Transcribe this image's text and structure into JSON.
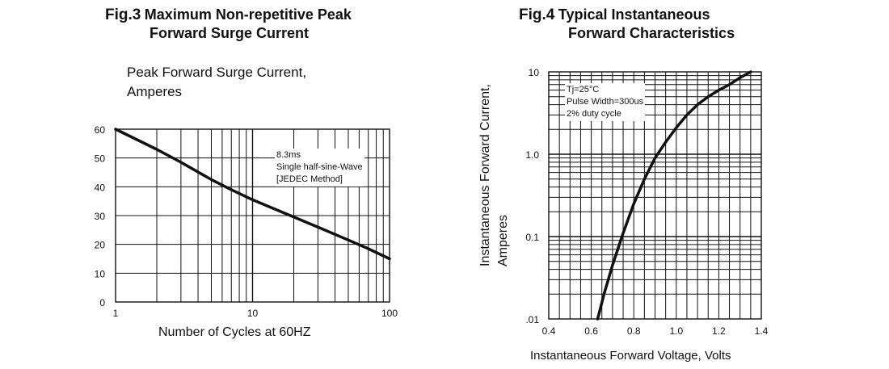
{
  "fig3": {
    "fig_label": "Fig.3",
    "title_line1": "Maximum Non-repetitive Peak",
    "title_line2": "Forward Surge Current",
    "ylabel_line1": "Peak Forward Surge Current,",
    "ylabel_line2": "Amperes",
    "xlabel": "Number of Cycles at 60HZ",
    "note_line1": "8.3ms",
    "note_line2": "Single half-sine-Wave",
    "note_line3": "[JEDEC Method]"
  },
  "fig4": {
    "fig_label": "Fig.4",
    "title_line1": "Typical Instantaneous",
    "title_line2": "Forward Characteristics",
    "ylabel_line1": "Instantaneous Forward Current,",
    "ylabel_line2": "Amperes",
    "xlabel": "Instantaneous Forward  Voltage, Volts",
    "note_line1": "Tj=25°C",
    "note_line2": "Pulse Width=300us",
    "note_line3": "2% duty cycle"
  },
  "chart_data": [
    {
      "type": "line",
      "title": "Fig.3 Maximum Non-repetitive Peak Forward Surge Current",
      "xlabel": "Number of Cycles at 60HZ",
      "ylabel": "Peak Forward Surge Current, Amperes",
      "xscale": "log",
      "xlim": [
        1,
        100
      ],
      "ylim": [
        0,
        60
      ],
      "xticks": [
        "1",
        "10",
        "100"
      ],
      "yticks": [
        "0",
        "10",
        "20",
        "30",
        "40",
        "50",
        "60"
      ],
      "grid": true,
      "series": [
        {
          "x": [
            1,
            2,
            3,
            5,
            7,
            10,
            20,
            30,
            50,
            70,
            100
          ],
          "y": [
            60,
            53,
            48.5,
            42.5,
            39,
            35.5,
            29.5,
            26,
            21.5,
            18.5,
            15
          ]
        }
      ]
    },
    {
      "type": "line",
      "title": "Fig.4 Typical Instantaneous Forward Characteristics",
      "xlabel": "Instantaneous Forward  Voltage, Volts",
      "ylabel": "Instantaneous Forward Current, Amperes",
      "yscale": "log",
      "xlim": [
        0.4,
        1.4
      ],
      "ylim": [
        0.01,
        10
      ],
      "xticks": [
        "0.4",
        "0.6",
        "0.8",
        "1.0",
        "1.2",
        "1.4"
      ],
      "yticks": [
        ".01",
        "0.1",
        "1.0",
        "10"
      ],
      "grid": true,
      "series": [
        {
          "x": [
            0.63,
            0.66,
            0.7,
            0.75,
            0.8,
            0.85,
            0.9,
            0.95,
            1.0,
            1.05,
            1.1,
            1.15,
            1.2,
            1.25,
            1.3,
            1.35
          ],
          "y": [
            0.01,
            0.02,
            0.045,
            0.11,
            0.25,
            0.5,
            0.9,
            1.4,
            2.1,
            3.0,
            4.0,
            5.0,
            6.0,
            7.0,
            8.5,
            10
          ]
        }
      ]
    }
  ]
}
